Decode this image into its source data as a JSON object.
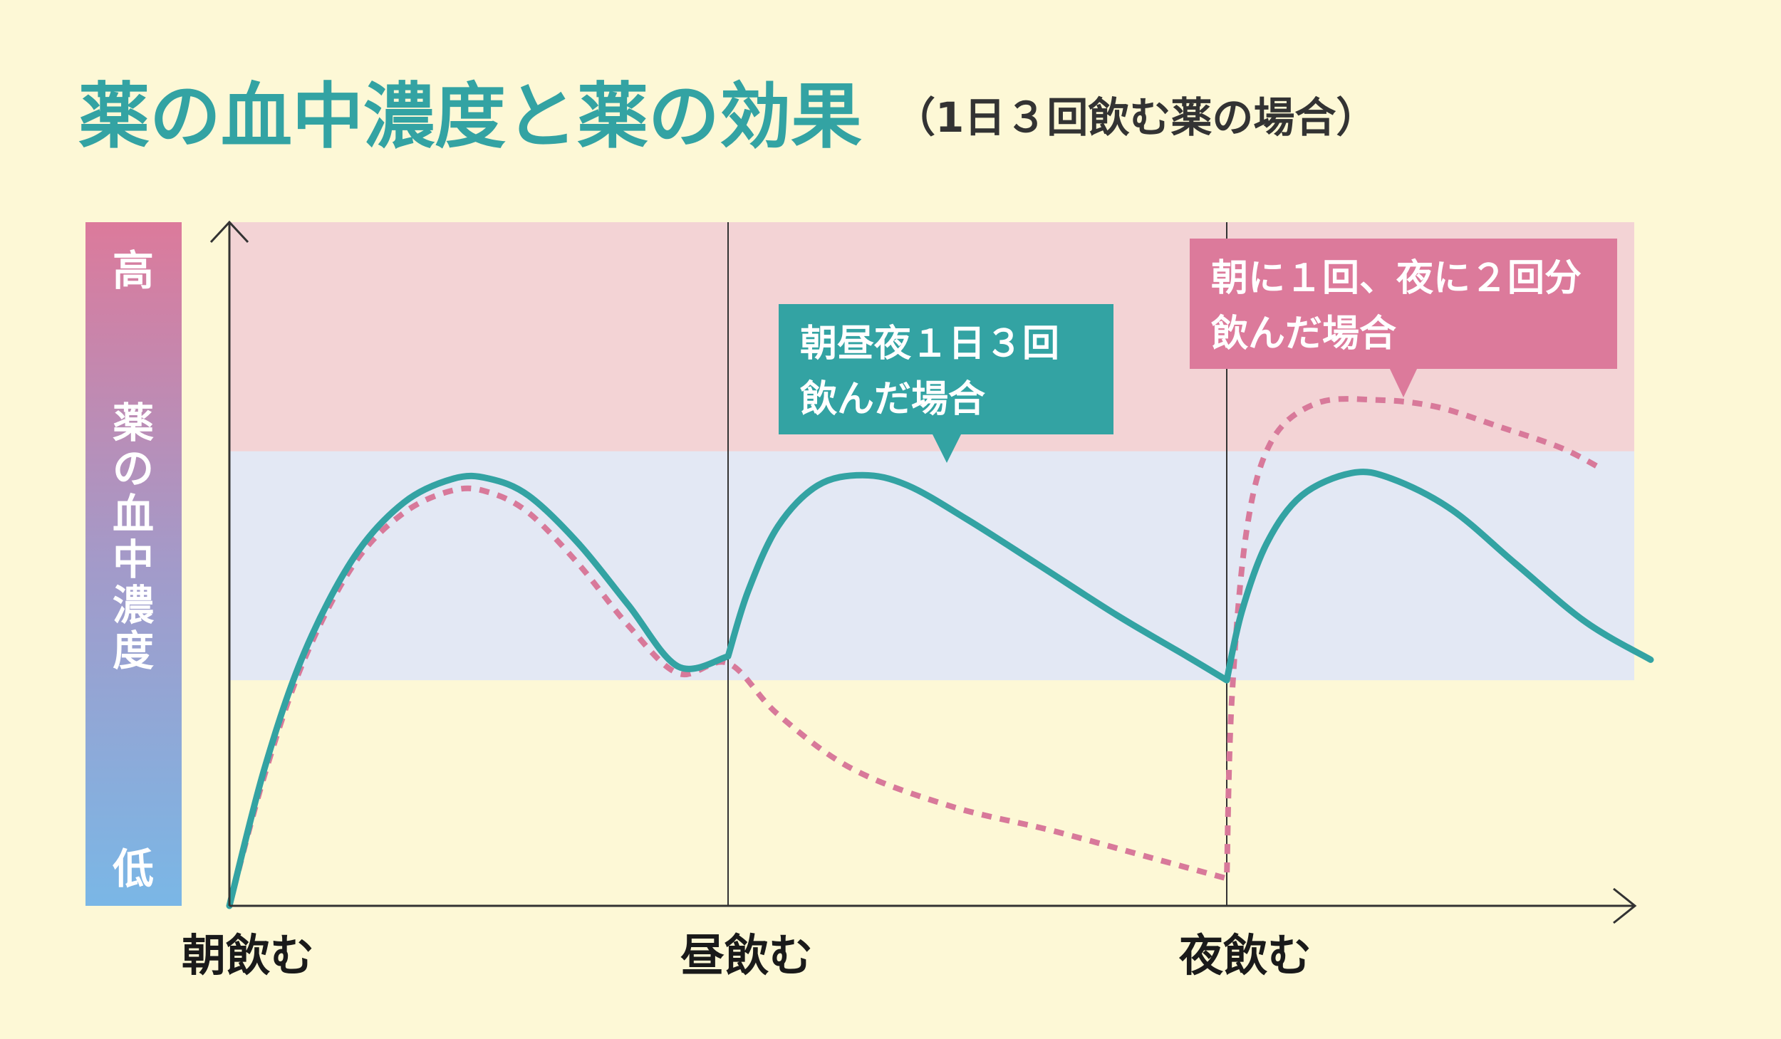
{
  "title": {
    "main": "薬の血中濃度と薬の効果",
    "sub": "（1日３回飲む薬の場合）"
  },
  "colors": {
    "background": "#fdf8d6",
    "teal": "#33a3a3",
    "pink": "#d8799a",
    "pink_zone": "#f3d3d5",
    "blue_zone": "#e3e8f4",
    "axis": "#333333",
    "bar_top": "#dc7a9b",
    "bar_bottom": "#7ab7e6"
  },
  "chart_data": {
    "type": "line",
    "ylabel": {
      "high": "高",
      "label": "薬の血中濃度",
      "low": "低"
    },
    "x_ticks": [
      {
        "x": 0,
        "label": "朝飲む"
      },
      {
        "x": 1,
        "label": "昼飲む"
      },
      {
        "x": 2,
        "label": "夜飲む"
      }
    ],
    "xlim": [
      0,
      2.85
    ],
    "ylim": [
      0,
      1
    ],
    "zones": [
      {
        "from": 0.33,
        "to": 0.665,
        "color": "#e3e8f4"
      },
      {
        "from": 0.665,
        "to": 1.0,
        "color": "#f3d3d5"
      }
    ],
    "grid": false,
    "series": [
      {
        "name": "朝昼夜１日３回\n飲んだ場合",
        "style": "solid",
        "color": "#33a3a3",
        "points": [
          [
            0,
            0
          ],
          [
            0.07,
            0.2
          ],
          [
            0.15,
            0.37
          ],
          [
            0.25,
            0.51
          ],
          [
            0.35,
            0.59
          ],
          [
            0.45,
            0.625
          ],
          [
            0.52,
            0.625
          ],
          [
            0.6,
            0.6
          ],
          [
            0.7,
            0.53
          ],
          [
            0.8,
            0.44
          ],
          [
            0.9,
            0.35
          ],
          [
            1.0,
            0.365
          ],
          [
            1.0,
            0.365
          ],
          [
            1.04,
            0.46
          ],
          [
            1.1,
            0.555
          ],
          [
            1.18,
            0.615
          ],
          [
            1.27,
            0.63
          ],
          [
            1.36,
            0.615
          ],
          [
            1.48,
            0.565
          ],
          [
            1.62,
            0.5
          ],
          [
            1.78,
            0.425
          ],
          [
            1.92,
            0.365
          ],
          [
            2.0,
            0.33
          ],
          [
            2.0,
            0.33
          ],
          [
            2.03,
            0.43
          ],
          [
            2.08,
            0.53
          ],
          [
            2.15,
            0.6
          ],
          [
            2.25,
            0.633
          ],
          [
            2.33,
            0.625
          ],
          [
            2.45,
            0.58
          ],
          [
            2.58,
            0.5
          ],
          [
            2.72,
            0.415
          ],
          [
            2.85,
            0.36
          ]
        ]
      },
      {
        "name": "朝に１回、夜に２回分\n飲んだ場合",
        "style": "dashed",
        "color": "#d8799a",
        "points": [
          [
            0,
            0
          ],
          [
            0.07,
            0.19
          ],
          [
            0.15,
            0.36
          ],
          [
            0.25,
            0.5
          ],
          [
            0.35,
            0.575
          ],
          [
            0.45,
            0.608
          ],
          [
            0.52,
            0.605
          ],
          [
            0.6,
            0.575
          ],
          [
            0.7,
            0.5
          ],
          [
            0.8,
            0.41
          ],
          [
            0.9,
            0.34
          ],
          [
            1.0,
            0.355
          ],
          [
            1.1,
            0.28
          ],
          [
            1.25,
            0.2
          ],
          [
            1.45,
            0.145
          ],
          [
            1.65,
            0.11
          ],
          [
            1.85,
            0.07
          ],
          [
            2.0,
            0.04
          ],
          [
            2.0,
            0.04
          ],
          [
            2.01,
            0.3
          ],
          [
            2.04,
            0.55
          ],
          [
            2.09,
            0.68
          ],
          [
            2.18,
            0.735
          ],
          [
            2.3,
            0.74
          ],
          [
            2.42,
            0.73
          ],
          [
            2.55,
            0.7
          ],
          [
            2.67,
            0.67
          ],
          [
            2.75,
            0.64
          ]
        ]
      }
    ]
  },
  "bubbles": {
    "teal": "朝昼夜１日３回\n飲んだ場合",
    "pink": "朝に１回、夜に２回分\n飲んだ場合"
  }
}
